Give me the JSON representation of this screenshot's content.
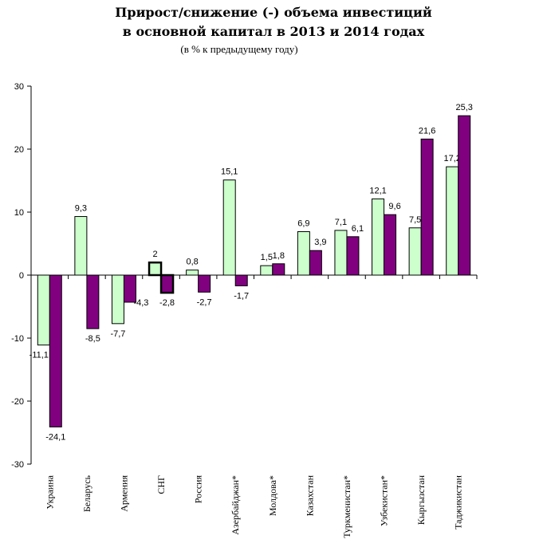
{
  "chart_data": {
    "type": "bar",
    "title_line1": "Прирост/снижение (-) объема инвестиций",
    "title_line2": "в основной капитал в 2013 и 2014 годах",
    "subtitle": "(в % к предыдущему году)",
    "xlabel": "",
    "ylabel": "",
    "ylim": [
      -30,
      30
    ],
    "yticks": [
      30,
      20,
      10,
      0,
      -10,
      -20,
      -30
    ],
    "ytick_labels": [
      "30",
      "20",
      "10",
      "0",
      "-10",
      "-20",
      "-30"
    ],
    "grid": false,
    "legend": "none",
    "categories": [
      "Украина",
      "Беларусь",
      "Армения",
      "СНГ",
      "Россия",
      "Азербайджан*",
      "Молдова*",
      "Казахстан",
      "Туркменистан*",
      "Узбекистан*",
      "Кыргызстан",
      "Таджикистан"
    ],
    "highlighted_category": "СНГ",
    "series": [
      {
        "name": "2013",
        "color": "#CCFFCC",
        "values": [
          -11.1,
          9.3,
          -7.7,
          2,
          0.8,
          15.1,
          1.5,
          6.9,
          7.1,
          12.1,
          7.5,
          17.2
        ],
        "labels": [
          "-11,1",
          "9,3",
          "-7,7",
          "2",
          "0,8",
          "15,1",
          "1,5",
          "6,9",
          "7,1",
          "12,1",
          "7,5",
          "17,2"
        ]
      },
      {
        "name": "2014",
        "color": "#800080",
        "values": [
          -24.1,
          -8.5,
          -4.3,
          -2.8,
          -2.7,
          -1.7,
          1.8,
          3.9,
          6.1,
          9.6,
          21.6,
          25.3
        ],
        "labels": [
          "-24,1",
          "-8,5",
          "-4,3",
          "-2,8",
          "-2,7",
          "-1,7",
          "1,8",
          "3,9",
          "6,1",
          "9,6",
          "21,6",
          "25,3"
        ]
      }
    ]
  }
}
